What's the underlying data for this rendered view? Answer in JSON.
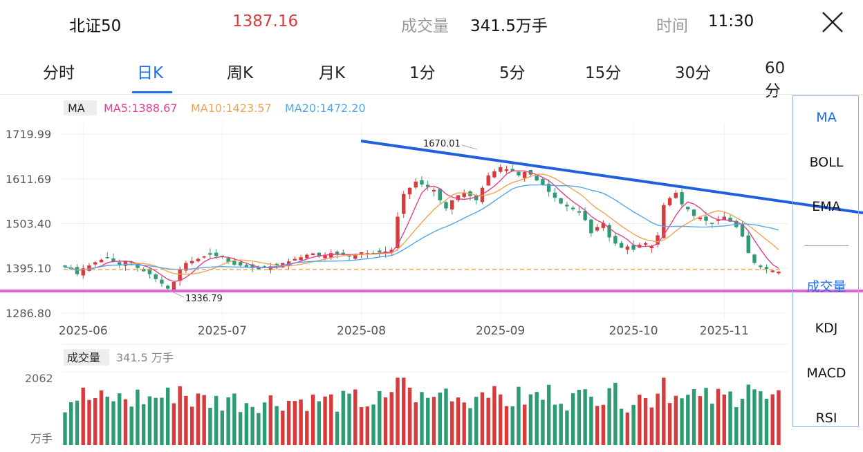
{
  "header": {
    "name": "北证50",
    "price": "1387.16",
    "volume_label": "成交量",
    "volume_value": "341.5万手",
    "time_label": "时间",
    "time_value": "11:30"
  },
  "tabs": [
    "分时",
    "日K",
    "周K",
    "月K",
    "1分",
    "5分",
    "15分",
    "30分",
    "60分"
  ],
  "active_tab": "日K",
  "indicators": {
    "main": [
      "MA",
      "BOLL",
      "EMA"
    ],
    "sub": [
      "成交量",
      "KDJ",
      "MACD",
      "RSI"
    ],
    "active_main": "MA",
    "active_sub": "成交量"
  },
  "legend": {
    "label": "MA",
    "ma5": "MA5:1388.67",
    "ma10": "MA10:1423.57",
    "ma20": "MA20:1472.20"
  },
  "volume_panel": {
    "label": "成交量",
    "value": "341.5 万手",
    "max_label": "2062",
    "unit_label": "万手"
  },
  "colors": {
    "up": "#d83b3b",
    "down": "#2e9b72",
    "ma5": "#e0418f",
    "ma10": "#f0a355",
    "ma20": "#52a7e8",
    "trendline": "#1f5fe0",
    "support": "#e25de0",
    "current_price_line": "#f0a355",
    "accent": "#1a6ef0"
  },
  "chart_data": {
    "type": "candlestick",
    "y_ticks": [
      "1719.99",
      "1611.69",
      "1503.40",
      "1395.10",
      "1286.80"
    ],
    "x_ticks": [
      "2025-06",
      "2025-07",
      "2025-08",
      "2025-09",
      "2025-10",
      "2025-11"
    ],
    "ylim": [
      1286.8,
      1719.99
    ],
    "annotations": {
      "high": "1670.01",
      "low": "1336.79"
    },
    "closes": [
      1398,
      1393,
      1381,
      1395,
      1402,
      1410,
      1416,
      1420,
      1411,
      1404,
      1412,
      1408,
      1396,
      1388,
      1381,
      1369,
      1358,
      1346,
      1362,
      1392,
      1408,
      1413,
      1418,
      1424,
      1428,
      1425,
      1422,
      1410,
      1404,
      1402,
      1398,
      1396,
      1393,
      1396,
      1400,
      1402,
      1408,
      1412,
      1418,
      1422,
      1428,
      1431,
      1425,
      1428,
      1432,
      1430,
      1428,
      1424,
      1430,
      1434,
      1432,
      1430,
      1434,
      1436,
      1440,
      1520,
      1575,
      1590,
      1605,
      1598,
      1592,
      1585,
      1560,
      1540,
      1560,
      1572,
      1578,
      1570,
      1560,
      1590,
      1620,
      1630,
      1640,
      1635,
      1630,
      1620,
      1628,
      1622,
      1608,
      1598,
      1580,
      1566,
      1552,
      1545,
      1538,
      1530,
      1512,
      1480,
      1495,
      1505,
      1470,
      1455,
      1445,
      1448,
      1440,
      1452,
      1456,
      1448,
      1475,
      1548,
      1565,
      1578,
      1550,
      1538,
      1522,
      1518,
      1510,
      1503,
      1512,
      1520,
      1508,
      1495,
      1472,
      1432,
      1408,
      1398,
      1394,
      1390,
      1387
    ],
    "ma5_end": 1388.67,
    "ma10_end": 1423.57,
    "ma20_end": 1472.2
  }
}
